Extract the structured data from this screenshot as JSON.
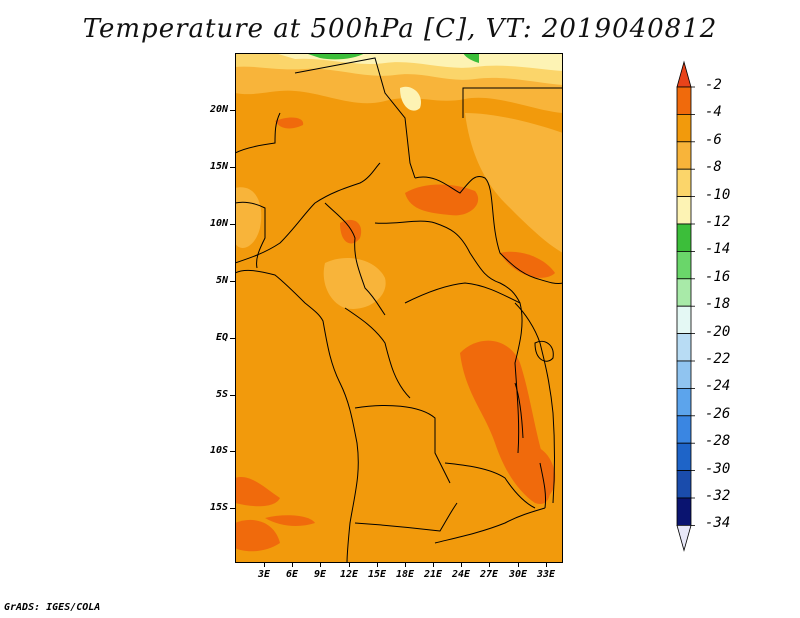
{
  "title": "Temperature at 500hPa [C], VT: 2019040812",
  "footer": "GrADS: IGES/COLA",
  "axes": {
    "lat_labels": [
      "20N",
      "15N",
      "10N",
      "5N",
      "EQ",
      "5S",
      "10S",
      "15S"
    ],
    "lon_labels": [
      "3E",
      "6E",
      "9E",
      "12E",
      "15E",
      "18E",
      "21E",
      "24E",
      "27E",
      "30E",
      "33E"
    ]
  },
  "colorbar": {
    "labels": [
      "-2",
      "-4",
      "-6",
      "-8",
      "-10",
      "-12",
      "-14",
      "-16",
      "-18",
      "-20",
      "-22",
      "-24",
      "-26",
      "-28",
      "-30",
      "-32",
      "-34"
    ],
    "colors": [
      "#e8431a",
      "#f06a0c",
      "#f29a0c",
      "#f8b43a",
      "#fbd56a",
      "#fdf3b4",
      "#3cbe3a",
      "#6ad66a",
      "#a8eaa8",
      "#e4f8f4",
      "#b8dcf4",
      "#90c4f0",
      "#5ca4ec",
      "#3a86e2",
      "#1e64c8",
      "#1a4cac",
      "#0a1470",
      "#e8e8f8"
    ]
  },
  "map_colors": {
    "base": "#f29a0c",
    "warm": "#f06a0c",
    "cool": "#f8b43a",
    "cooler": "#fbd56a",
    "coolest": "#fdf3b4",
    "green": "#3cbe3a"
  }
}
